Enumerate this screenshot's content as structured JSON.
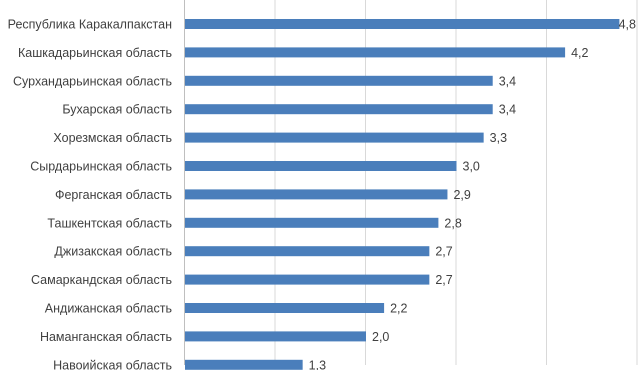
{
  "chart_data": {
    "type": "bar",
    "orientation": "horizontal",
    "title": "",
    "xlabel": "",
    "ylabel": "",
    "xlim": [
      0,
      5
    ],
    "grid": true,
    "legend": "none",
    "decimal_separator": ",",
    "bar_color": "#4a7ebb",
    "categories": [
      "Республика  Каракалпакстан",
      "Кашкадарьинская область",
      "Сурхандарьинская область",
      "Бухарская область",
      "Хорезмская область",
      "Сырдарьинская область",
      "Ферганская область",
      "Ташкентская область",
      "Джизакская область",
      "Самаркандская область",
      "Андижанская область",
      "Наманганская область",
      "Навоийская область"
    ],
    "values": [
      4.8,
      4.2,
      3.4,
      3.4,
      3.3,
      3.0,
      2.9,
      2.8,
      2.7,
      2.7,
      2.2,
      2.0,
      1.3
    ],
    "value_labels": [
      "4,8",
      "4,2",
      "3,4",
      "3,4",
      "3,3",
      "3,0",
      "2,9",
      "2,8",
      "2,7",
      "2,7",
      "2,2",
      "2,0",
      "1,3"
    ]
  }
}
